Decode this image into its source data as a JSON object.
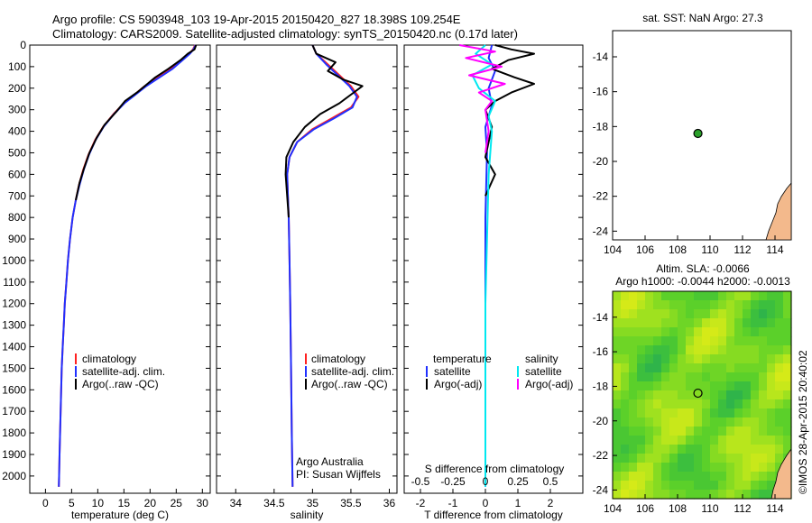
{
  "header": {
    "line1": "Argo profile: CS 5903948_103 19-Apr-2015 20150420_827 18.398S 109.254E",
    "line2": "Climatology: CARS2009. Satellite-adjusted climatology: synTS_20150420.nc (0.17d later)"
  },
  "side_stamp": "©IMOS 28-Apr-2015 20:40:02",
  "colors": {
    "climatology": "#ff2020",
    "satellite": "#2030ff",
    "argo": "#000000",
    "salinity_satellite": "#00e8f0",
    "salinity_argo": "#ff00ff",
    "land": "#f3b98c",
    "marker_green": "#2aa02a"
  },
  "chart_data": [
    {
      "type": "line",
      "name": "temperature-profile",
      "xlabel": "temperature (deg C)",
      "ylabel": "",
      "xlim": [
        -3,
        31.5
      ],
      "ylim": [
        0,
        2080
      ],
      "y_inverted": true,
      "xticks": [
        0,
        5,
        10,
        15,
        20,
        25,
        30
      ],
      "yticks": [
        0,
        100,
        200,
        300,
        400,
        500,
        600,
        700,
        800,
        900,
        1000,
        1100,
        1200,
        1300,
        1400,
        1500,
        1600,
        1700,
        1800,
        1900,
        2000
      ],
      "legend": [
        "climatology",
        "satellite-adj. clim.",
        "Argo(..raw -QC)"
      ],
      "series": [
        {
          "name": "climatology",
          "color_key": "climatology",
          "points": [
            [
              28.6,
              0
            ],
            [
              28.2,
              20
            ],
            [
              27.5,
              40
            ],
            [
              26,
              70
            ],
            [
              24,
              110
            ],
            [
              21.5,
              150
            ],
            [
              19,
              190
            ],
            [
              17,
              230
            ],
            [
              15,
              270
            ],
            [
              13,
              320
            ],
            [
              11,
              380
            ],
            [
              9.5,
              440
            ],
            [
              8.2,
              510
            ],
            [
              7.2,
              580
            ],
            [
              6.4,
              650
            ],
            [
              5.8,
              720
            ],
            [
              5.2,
              800
            ],
            [
              4.7,
              900
            ],
            [
              4.3,
              1000
            ],
            [
              4,
              1100
            ],
            [
              3.7,
              1200
            ],
            [
              3.5,
              1300
            ],
            [
              3.3,
              1400
            ],
            [
              3.1,
              1500
            ],
            [
              3,
              1600
            ],
            [
              2.9,
              1700
            ],
            [
              2.8,
              1800
            ],
            [
              2.7,
              1900
            ],
            [
              2.6,
              2000
            ],
            [
              2.55,
              2050
            ]
          ]
        },
        {
          "name": "satellite-adj. clim.",
          "color_key": "satellite",
          "points": [
            [
              28.7,
              0
            ],
            [
              28.3,
              20
            ],
            [
              27.6,
              40
            ],
            [
              26.2,
              70
            ],
            [
              24.3,
              110
            ],
            [
              21.8,
              150
            ],
            [
              19.3,
              190
            ],
            [
              17.2,
              230
            ],
            [
              15.1,
              270
            ],
            [
              13.1,
              320
            ],
            [
              11.1,
              380
            ],
            [
              9.6,
              440
            ],
            [
              8.3,
              510
            ],
            [
              7.3,
              580
            ],
            [
              6.5,
              650
            ],
            [
              5.8,
              720
            ],
            [
              5.2,
              800
            ],
            [
              4.7,
              900
            ],
            [
              4.3,
              1000
            ],
            [
              4,
              1100
            ],
            [
              3.7,
              1200
            ],
            [
              3.5,
              1300
            ],
            [
              3.3,
              1400
            ],
            [
              3.1,
              1500
            ],
            [
              3,
              1600
            ],
            [
              2.9,
              1700
            ],
            [
              2.8,
              1800
            ],
            [
              2.7,
              1900
            ],
            [
              2.6,
              2000
            ],
            [
              2.55,
              2050
            ]
          ]
        },
        {
          "name": "Argo(..raw -QC)",
          "color_key": "argo",
          "points": [
            [
              28.8,
              0
            ],
            [
              28.5,
              20
            ],
            [
              27.2,
              40
            ],
            [
              25.8,
              70
            ],
            [
              23.5,
              110
            ],
            [
              21,
              150
            ],
            [
              19.5,
              180
            ],
            [
              17.5,
              220
            ],
            [
              15.2,
              260
            ],
            [
              13.5,
              310
            ],
            [
              11.3,
              370
            ],
            [
              9.8,
              430
            ],
            [
              8.4,
              500
            ],
            [
              7.4,
              570
            ],
            [
              6.5,
              640
            ],
            [
              5.8,
              720
            ]
          ]
        }
      ]
    },
    {
      "type": "line",
      "name": "salinity-profile",
      "xlabel": "salinity",
      "ylabel": "",
      "xlim": [
        33.75,
        36.1
      ],
      "ylim": [
        0,
        2080
      ],
      "y_inverted": true,
      "xticks": [
        34,
        34.5,
        35,
        35.5,
        36
      ],
      "legend": [
        "climatology",
        "satellite-adj. clim.",
        "Argo(..raw -QC)"
      ],
      "annotation": [
        "Argo Australia",
        "PI: Susan Wijffels"
      ],
      "series": [
        {
          "name": "climatology",
          "color_key": "climatology",
          "points": [
            [
              35,
              0
            ],
            [
              35.05,
              40
            ],
            [
              35.2,
              90
            ],
            [
              35.35,
              140
            ],
            [
              35.5,
              190
            ],
            [
              35.6,
              240
            ],
            [
              35.5,
              290
            ],
            [
              35.25,
              340
            ],
            [
              35,
              390
            ],
            [
              34.8,
              450
            ],
            [
              34.7,
              520
            ],
            [
              34.67,
              600
            ],
            [
              34.68,
              700
            ],
            [
              34.69,
              800
            ],
            [
              34.7,
              1000
            ],
            [
              34.71,
              1200
            ],
            [
              34.72,
              1500
            ],
            [
              34.73,
              1800
            ],
            [
              34.74,
              2050
            ]
          ]
        },
        {
          "name": "satellite-adj. clim.",
          "color_key": "satellite",
          "points": [
            [
              35,
              0
            ],
            [
              35.05,
              40
            ],
            [
              35.18,
              90
            ],
            [
              35.33,
              140
            ],
            [
              35.48,
              190
            ],
            [
              35.58,
              240
            ],
            [
              35.52,
              290
            ],
            [
              35.28,
              340
            ],
            [
              35.02,
              390
            ],
            [
              34.8,
              450
            ],
            [
              34.7,
              520
            ],
            [
              34.67,
              600
            ],
            [
              34.68,
              700
            ],
            [
              34.69,
              800
            ],
            [
              34.7,
              1000
            ],
            [
              34.71,
              1200
            ],
            [
              34.72,
              1500
            ],
            [
              34.73,
              1800
            ],
            [
              34.74,
              2050
            ]
          ]
        },
        {
          "name": "Argo(..raw -QC)",
          "color_key": "argo",
          "points": [
            [
              35,
              0
            ],
            [
              35.05,
              40
            ],
            [
              35.3,
              80
            ],
            [
              35.2,
              120
            ],
            [
              35.4,
              160
            ],
            [
              35.65,
              190
            ],
            [
              35.5,
              230
            ],
            [
              35.35,
              270
            ],
            [
              35.1,
              320
            ],
            [
              34.9,
              380
            ],
            [
              34.75,
              450
            ],
            [
              34.66,
              520
            ],
            [
              34.65,
              600
            ],
            [
              34.67,
              700
            ],
            [
              34.69,
              800
            ]
          ]
        }
      ]
    },
    {
      "type": "line",
      "name": "difference-profile",
      "xlabel": "T difference from climatology",
      "xlabel_top": "S difference from climatology",
      "xlim": [
        -2.5,
        3
      ],
      "ylim": [
        0,
        2080
      ],
      "y_inverted": true,
      "xticks": [
        -2,
        -1,
        0,
        1,
        2
      ],
      "xticks_top_labels": [
        "-0.5",
        "-0.25",
        "0",
        "0.25",
        "0.5"
      ],
      "legend_titles": [
        "temperature",
        "salinity"
      ],
      "legend_left": [
        "satellite",
        "Argo(-adj)"
      ],
      "legend_right": [
        "satellite",
        "Argo(-adj)"
      ],
      "series": [
        {
          "name": "temperature satellite",
          "color_key": "satellite",
          "points": [
            [
              0.2,
              0
            ],
            [
              0.1,
              60
            ],
            [
              0.3,
              120
            ],
            [
              0.1,
              200
            ],
            [
              0.2,
              280
            ],
            [
              0,
              380
            ],
            [
              0.05,
              500
            ],
            [
              0,
              800
            ],
            [
              0,
              1200
            ],
            [
              0,
              2050
            ]
          ]
        },
        {
          "name": "temperature Argo(-adj)",
          "color_key": "argo",
          "points": [
            [
              0.3,
              0
            ],
            [
              0.8,
              20
            ],
            [
              1.5,
              40
            ],
            [
              0.7,
              70
            ],
            [
              0.2,
              110
            ],
            [
              0.9,
              150
            ],
            [
              1.5,
              180
            ],
            [
              0.8,
              220
            ],
            [
              0.3,
              260
            ],
            [
              0,
              300
            ],
            [
              0.2,
              380
            ],
            [
              0.1,
              450
            ],
            [
              0,
              520
            ],
            [
              0.3,
              600
            ],
            [
              0,
              700
            ]
          ]
        },
        {
          "name": "salinity satellite",
          "color_key": "salinity_satellite",
          "points": [
            [
              0,
              0
            ],
            [
              -0.3,
              40
            ],
            [
              0.2,
              90
            ],
            [
              -0.4,
              140
            ],
            [
              -0.2,
              200
            ],
            [
              0.3,
              260
            ],
            [
              0.1,
              330
            ],
            [
              0.2,
              400
            ],
            [
              0.1,
              600
            ],
            [
              0.05,
              900
            ],
            [
              0,
              1200
            ],
            [
              0,
              1600
            ],
            [
              0,
              2050
            ]
          ]
        },
        {
          "name": "salinity Argo(-adj)",
          "color_key": "salinity_argo",
          "points": [
            [
              -0.8,
              0
            ],
            [
              0.3,
              30
            ],
            [
              -0.6,
              60
            ],
            [
              0.5,
              100
            ],
            [
              -0.5,
              140
            ],
            [
              0.6,
              180
            ],
            [
              -0.2,
              220
            ],
            [
              0.2,
              260
            ],
            [
              0,
              300
            ],
            [
              0.1,
              400
            ],
            [
              0,
              500
            ]
          ]
        }
      ]
    },
    {
      "type": "scatter",
      "name": "sst-map",
      "title": "sat. SST: NaN Argo: 27.3",
      "xlim": [
        104,
        115
      ],
      "ylim": [
        -24.5,
        -12.5
      ],
      "xticks": [
        104,
        106,
        108,
        110,
        112,
        114
      ],
      "yticks": [
        -14,
        -16,
        -18,
        -20,
        -22,
        -24
      ],
      "points": [
        {
          "x": 109.254,
          "y": -18.398
        }
      ]
    },
    {
      "type": "heatmap",
      "name": "sla-map",
      "title_line1": "Altim. SLA: -0.0066",
      "title_line2": "Argo h1000: -0.0044 h2000: -0.0013",
      "xlim": [
        104,
        115
      ],
      "ylim": [
        -24.5,
        -12.5
      ],
      "xticks": [
        104,
        106,
        108,
        110,
        112,
        114
      ],
      "yticks": [
        -14,
        -16,
        -18,
        -20,
        -22,
        -24
      ],
      "points": [
        {
          "x": 109.254,
          "y": -18.398
        }
      ]
    }
  ]
}
